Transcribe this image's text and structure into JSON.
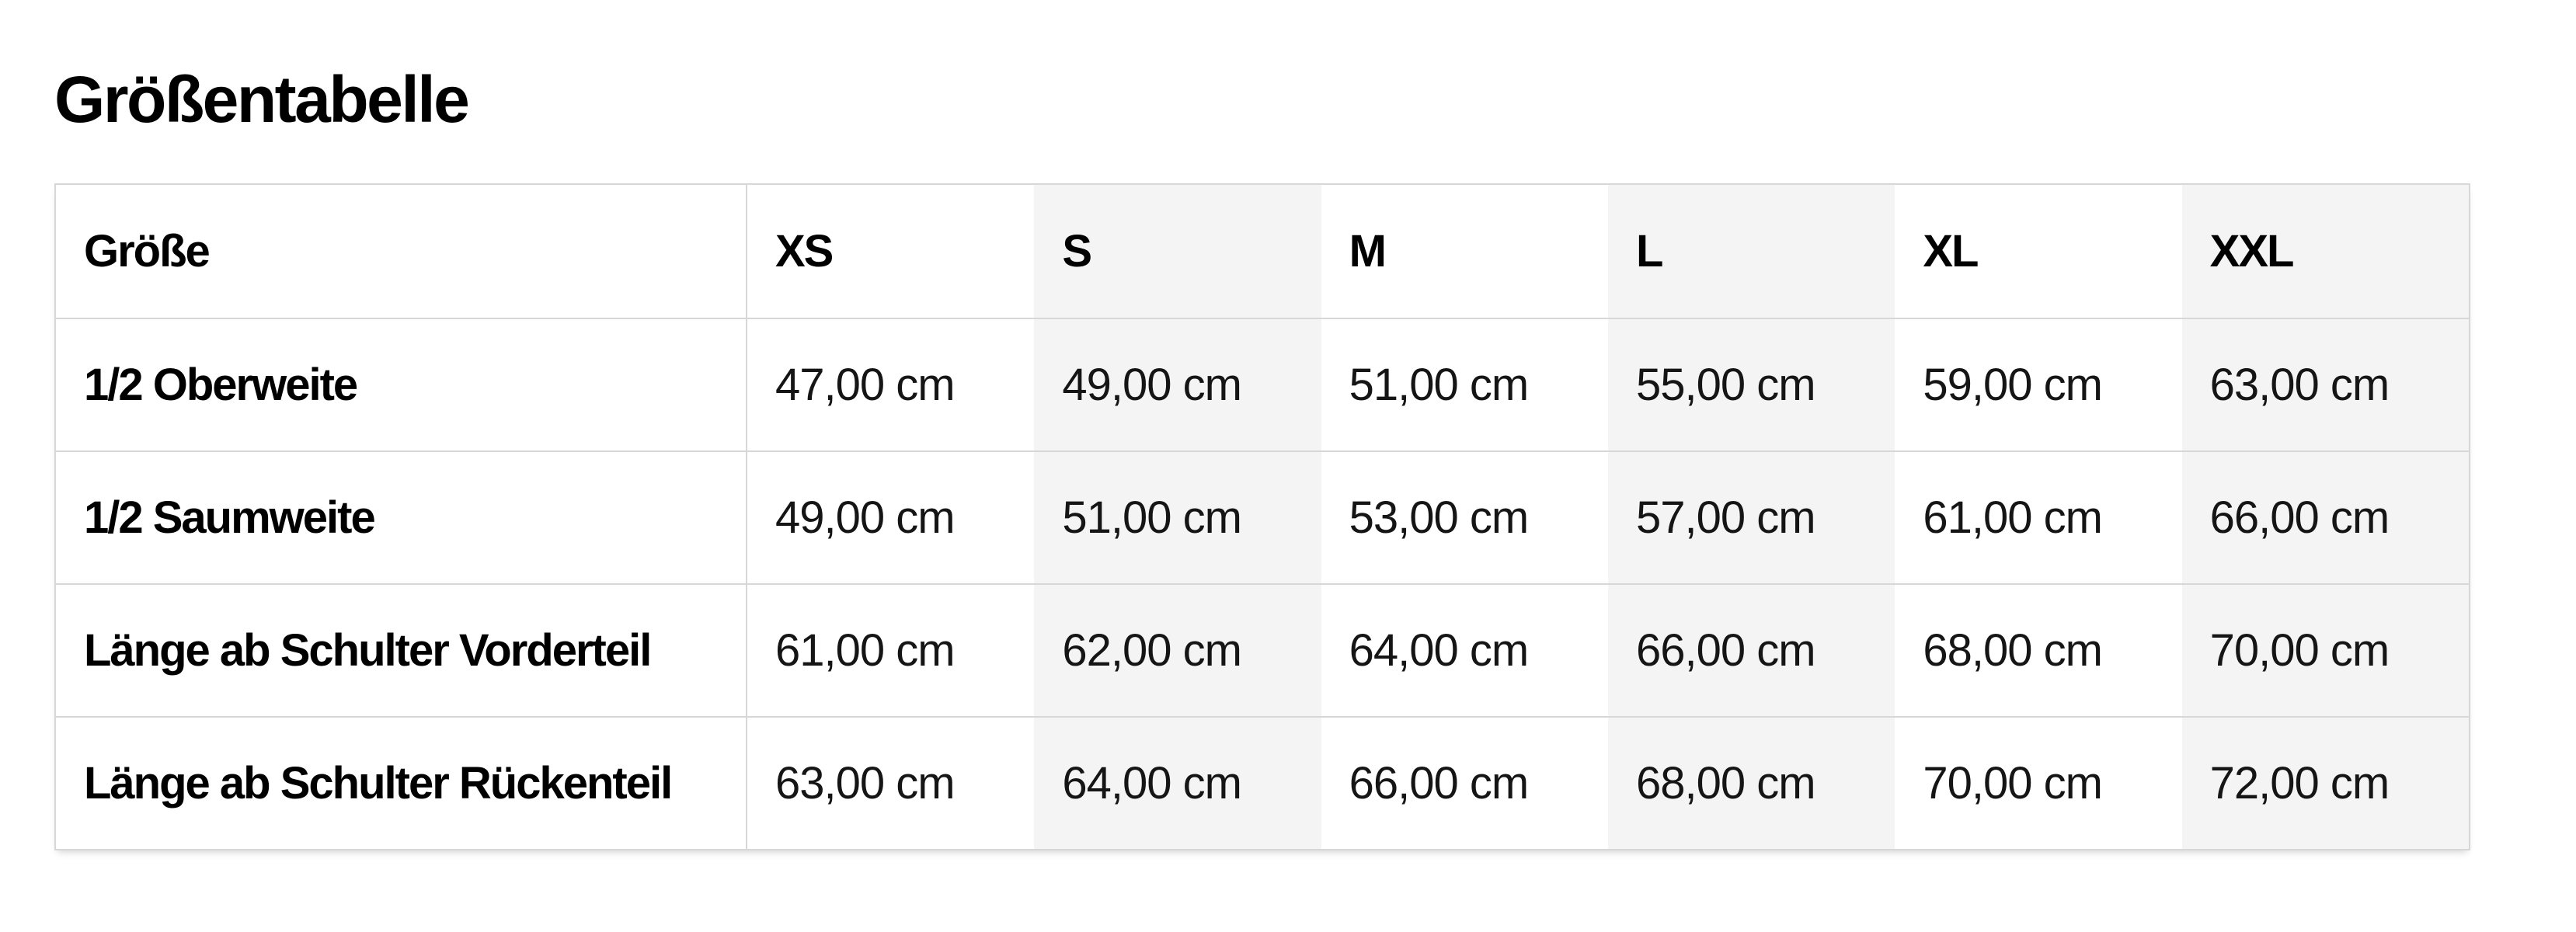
{
  "page": {
    "title": "Größentabelle"
  },
  "table": {
    "corner_header": "Größe",
    "size_headers": [
      "XS",
      "S",
      "M",
      "L",
      "XL",
      "XXL"
    ],
    "rows": [
      {
        "label": "1/2 Oberweite",
        "values": [
          "47,00 cm",
          "49,00 cm",
          "51,00 cm",
          "55,00 cm",
          "59,00 cm",
          "63,00 cm"
        ]
      },
      {
        "label": "1/2 Saumweite",
        "values": [
          "49,00 cm",
          "51,00 cm",
          "53,00 cm",
          "57,00 cm",
          "61,00 cm",
          "66,00 cm"
        ]
      },
      {
        "label": "Länge ab Schulter Vorderteil",
        "values": [
          "61,00 cm",
          "62,00 cm",
          "64,00 cm",
          "66,00 cm",
          "68,00 cm",
          "70,00 cm"
        ]
      },
      {
        "label": "Länge ab Schulter Rückenteil",
        "values": [
          "63,00 cm",
          "64,00 cm",
          "66,00 cm",
          "68,00 cm",
          "70,00 cm",
          "72,00 cm"
        ]
      }
    ],
    "colors": {
      "page_bg": "#ffffff",
      "stripe_bg": "#f4f4f4",
      "border": "#d7d7d7",
      "text": "#000000"
    }
  }
}
